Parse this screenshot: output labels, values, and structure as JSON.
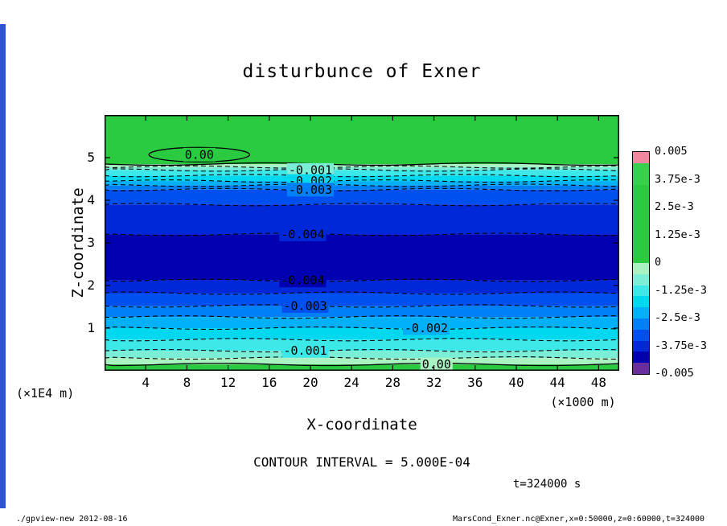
{
  "footer": {
    "left": "./gpview-new  2012-08-16",
    "right": "MarsCond_Exner.nc@Exner,x=0:50000,z=0:60000,t=324000"
  },
  "chart_data": {
    "type": "filled_contour",
    "title": "disturbunce of Exner",
    "xlabel": "X-coordinate",
    "ylabel": "Z-coordinate",
    "x_unit_label": "(×1000 m)",
    "y_unit_label": "(×1E4 m)",
    "contour_interval_label": "CONTOUR INTERVAL = 5.000E-04",
    "time_label": "t=324000 s",
    "xlim": [
      0,
      50
    ],
    "ylim": [
      0,
      6
    ],
    "x_ticks": [
      4,
      8,
      12,
      16,
      20,
      24,
      28,
      32,
      36,
      40,
      44,
      48
    ],
    "y_ticks": [
      1,
      2,
      3,
      4,
      5
    ],
    "grid": false,
    "bands": [
      {
        "top": 6.0,
        "bottom": 4.85,
        "color": "#2acb41",
        "value": "0 to +"
      },
      {
        "top": 4.85,
        "bottom": 4.78,
        "color": "#a9f2c2",
        "value": "0 to -5e-4"
      },
      {
        "top": 4.78,
        "bottom": 4.71,
        "color": "#7beed8",
        "value": "-5e-4 to -1e-3"
      },
      {
        "top": 4.71,
        "bottom": 4.58,
        "color": "#3ce8e8",
        "value": "-1e-3 to -1.5e-3"
      },
      {
        "top": 4.58,
        "bottom": 4.45,
        "color": "#00d8f0",
        "value": "-1.5e-3 to -2e-3"
      },
      {
        "top": 4.45,
        "bottom": 4.35,
        "color": "#00b0f8",
        "value": "-2e-3 to -2.5e-3"
      },
      {
        "top": 4.35,
        "bottom": 4.25,
        "color": "#0080f8",
        "value": "-2.5e-3 to -3e-3"
      },
      {
        "top": 4.25,
        "bottom": 3.9,
        "color": "#0050f0",
        "value": "-3e-3 to -3.5e-3"
      },
      {
        "top": 3.9,
        "bottom": 3.2,
        "color": "#0028d8",
        "value": "-3.5e-3 to -4e-3"
      },
      {
        "top": 3.2,
        "bottom": 2.12,
        "color": "#0000b0",
        "value": "below -4e-3"
      },
      {
        "top": 2.12,
        "bottom": 1.82,
        "color": "#0028d8",
        "value": "-3.5e-3 to -4e-3"
      },
      {
        "top": 1.82,
        "bottom": 1.52,
        "color": "#0050f0",
        "value": "-3e-3 to -3.5e-3"
      },
      {
        "top": 1.52,
        "bottom": 1.26,
        "color": "#0080f8",
        "value": "-2.5e-3 to -3e-3"
      },
      {
        "top": 1.26,
        "bottom": 1.0,
        "color": "#00b0f8",
        "value": "-2e-3 to -2.5e-3"
      },
      {
        "top": 1.0,
        "bottom": 0.73,
        "color": "#00d8f0",
        "value": "-1.5e-3 to -2e-3"
      },
      {
        "top": 0.73,
        "bottom": 0.47,
        "color": "#3ce8e8",
        "value": "-1e-3 to -1.5e-3"
      },
      {
        "top": 0.47,
        "bottom": 0.3,
        "color": "#7beed8",
        "value": "-5e-4 to -1e-3"
      },
      {
        "top": 0.3,
        "bottom": 0.15,
        "color": "#a9f2c2",
        "value": "0 to -5e-4"
      },
      {
        "top": 0.15,
        "bottom": 0.0,
        "color": "#2acb41",
        "value": "0 to +"
      }
    ],
    "contours": [
      {
        "z": 4.85,
        "solid": true
      },
      {
        "z": 4.78
      },
      {
        "z": 4.71,
        "label": "-0.001",
        "label_x": 0.4
      },
      {
        "z": 4.58
      },
      {
        "z": 4.45,
        "label": "-0.002",
        "label_x": 0.4
      },
      {
        "z": 4.35
      },
      {
        "z": 4.25,
        "label": "-0.003",
        "label_x": 0.4
      },
      {
        "z": 3.9
      },
      {
        "z": 3.2,
        "label": "-0.004",
        "label_x": 0.385
      },
      {
        "z": 2.12,
        "label": "-0.004",
        "label_x": 0.385
      },
      {
        "z": 1.82
      },
      {
        "z": 1.52,
        "label": "-0.003",
        "label_x": 0.39
      },
      {
        "z": 1.26
      },
      {
        "z": 1.0,
        "label": "-0.002",
        "label_x": 0.625
      },
      {
        "z": 0.73
      },
      {
        "z": 0.47,
        "label": "-0.001",
        "label_x": 0.39
      },
      {
        "z": 0.3
      },
      {
        "z": 0.15,
        "solid": true,
        "label": "0.00",
        "label_x": 0.645
      }
    ],
    "zero_ellipse": {
      "x": 9.2,
      "z": 5.07,
      "rx": 4.9,
      "rz": 0.17,
      "label": "0.00"
    },
    "colorbar": {
      "ticks": [
        "0.005",
        "3.75e-3",
        "2.5e-3",
        "1.25e-3",
        "0",
        "-1.25e-3",
        "-2.5e-3",
        "-3.75e-3",
        "-0.005"
      ],
      "segments": [
        "#f2879f",
        "#35d04c",
        "#35d04c",
        "#2acb41",
        "#2acb41",
        "#2acb41",
        "#2acb41",
        "#2acb41",
        "#2acb41",
        "#2acb41",
        "#a9f2c2",
        "#7beed8",
        "#3ce8e8",
        "#00d8f0",
        "#00b0f8",
        "#0080f8",
        "#0050f0",
        "#0028d8",
        "#0000b0",
        "#6a2d9e"
      ]
    }
  }
}
